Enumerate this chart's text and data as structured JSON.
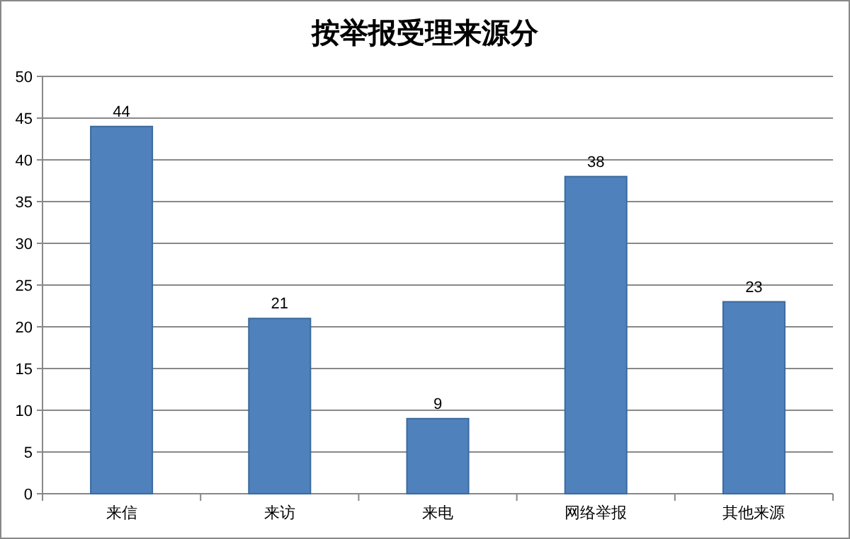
{
  "chart_data": {
    "type": "bar",
    "title": "按举报受理来源分",
    "categories": [
      "来信",
      "来访",
      "来电",
      "网络举报",
      "其他来源"
    ],
    "values": [
      44,
      21,
      9,
      38,
      23
    ],
    "color": "#4f81bd",
    "ylim": [
      0,
      50
    ],
    "yticks": [
      0,
      5,
      10,
      15,
      20,
      25,
      30,
      35,
      40,
      45,
      50
    ],
    "grid": "y",
    "data_labels": true
  }
}
